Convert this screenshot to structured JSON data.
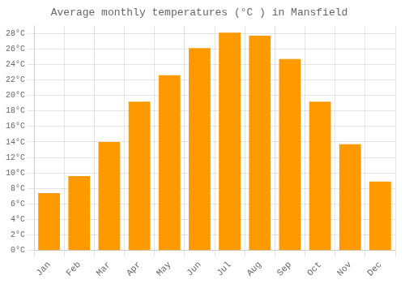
{
  "chart_data": {
    "type": "bar",
    "title": "Average monthly temperatures (°C ) in Mansfield",
    "categories": [
      "Jan",
      "Feb",
      "Mar",
      "Apr",
      "May",
      "Jun",
      "Jul",
      "Aug",
      "Sep",
      "Oct",
      "Nov",
      "Dec"
    ],
    "values": [
      7.4,
      9.6,
      14.0,
      19.2,
      22.6,
      26.1,
      28.1,
      27.7,
      24.7,
      19.2,
      13.7,
      8.9
    ],
    "color": "#FF9900",
    "ylim": [
      0,
      29
    ],
    "yticks": [
      {
        "value": 0,
        "label": "0°C"
      },
      {
        "value": 2,
        "label": "2°C"
      },
      {
        "value": 4,
        "label": "4°C"
      },
      {
        "value": 6,
        "label": "6°C"
      },
      {
        "value": 8,
        "label": "8°C"
      },
      {
        "value": 10,
        "label": "10°C"
      },
      {
        "value": 12,
        "label": "12°C"
      },
      {
        "value": 14,
        "label": "14°C"
      },
      {
        "value": 16,
        "label": "16°C"
      },
      {
        "value": 18,
        "label": "18°C"
      },
      {
        "value": 20,
        "label": "20°C"
      },
      {
        "value": 22,
        "label": "22°C"
      },
      {
        "value": 24,
        "label": "24°C"
      },
      {
        "value": 26,
        "label": "26°C"
      },
      {
        "value": 28,
        "label": "28°C"
      }
    ],
    "grid": true
  }
}
